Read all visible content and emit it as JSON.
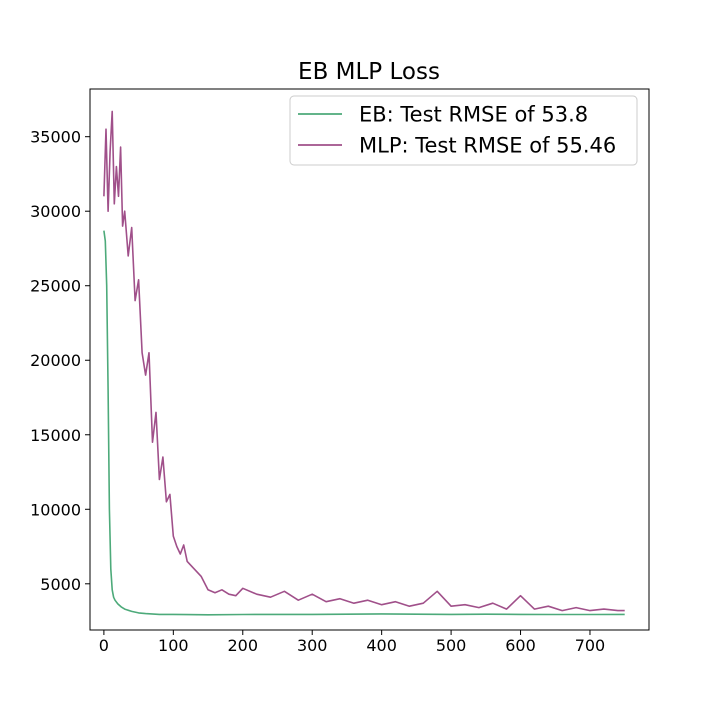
{
  "chart_data": {
    "type": "line",
    "title": "EB MLP Loss",
    "xlabel": "",
    "ylabel": "",
    "xlim": [
      -20,
      785
    ],
    "ylim": [
      1900,
      38200
    ],
    "xticks": [
      0,
      100,
      200,
      300,
      400,
      500,
      600,
      700
    ],
    "yticks": [
      5000,
      10000,
      15000,
      20000,
      25000,
      30000,
      35000
    ],
    "xtick_labels": [
      "0",
      "100",
      "200",
      "300",
      "400",
      "500",
      "600",
      "700"
    ],
    "ytick_labels": [
      "5000",
      "10000",
      "15000",
      "20000",
      "25000",
      "30000",
      "35000"
    ],
    "grid": false,
    "legend_position": "top-right",
    "series": [
      {
        "name": "EB: Test RMSE of 53.8",
        "color": "#4daa7a",
        "x": [
          0,
          2,
          4,
          6,
          8,
          10,
          12,
          14,
          16,
          20,
          25,
          30,
          40,
          50,
          60,
          80,
          100,
          120,
          150,
          200,
          250,
          300,
          350,
          400,
          450,
          500,
          550,
          600,
          650,
          700,
          750
        ],
        "y": [
          28700,
          28000,
          25000,
          18000,
          10000,
          6000,
          4600,
          4100,
          3900,
          3650,
          3450,
          3300,
          3150,
          3050,
          3000,
          2950,
          2950,
          2930,
          2920,
          2940,
          2950,
          2950,
          2960,
          2980,
          2960,
          2950,
          2960,
          2950,
          2940,
          2940,
          2950
        ]
      },
      {
        "name": "MLP: Test RMSE of 55.46",
        "color": "#a0508a",
        "x": [
          0,
          3,
          6,
          9,
          12,
          15,
          18,
          21,
          24,
          27,
          30,
          35,
          40,
          45,
          50,
          55,
          60,
          65,
          70,
          75,
          80,
          85,
          90,
          95,
          100,
          105,
          110,
          115,
          120,
          130,
          140,
          150,
          160,
          170,
          180,
          190,
          200,
          220,
          240,
          260,
          280,
          300,
          320,
          340,
          360,
          380,
          400,
          420,
          440,
          460,
          480,
          500,
          520,
          540,
          560,
          580,
          600,
          620,
          640,
          660,
          680,
          700,
          720,
          740,
          750
        ],
        "y": [
          31000,
          35500,
          30000,
          34000,
          36700,
          30500,
          33000,
          31000,
          34300,
          29000,
          30000,
          27000,
          28900,
          24000,
          25400,
          20500,
          19000,
          20500,
          14500,
          16500,
          12000,
          13500,
          10500,
          11000,
          8200,
          7500,
          7000,
          7600,
          6500,
          6000,
          5500,
          4600,
          4400,
          4600,
          4300,
          4200,
          4700,
          4300,
          4100,
          4500,
          3900,
          4300,
          3800,
          4000,
          3700,
          3900,
          3600,
          3800,
          3500,
          3700,
          4500,
          3500,
          3600,
          3400,
          3700,
          3300,
          4200,
          3300,
          3500,
          3200,
          3400,
          3200,
          3300,
          3200,
          3200
        ]
      }
    ]
  }
}
